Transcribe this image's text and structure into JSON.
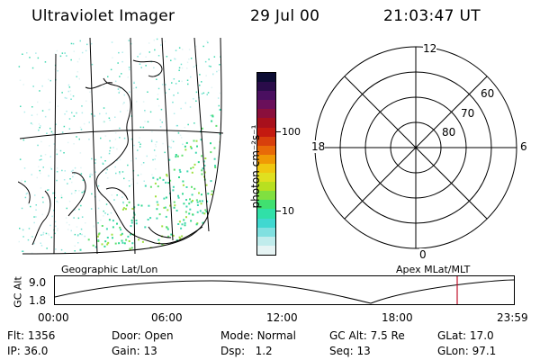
{
  "header": {
    "instrument": "Ultraviolet Imager",
    "date": "29 Jul 00",
    "time": "21:03:47 UT"
  },
  "colorbar": {
    "unit_label": "photon cm⁻²s⁻¹",
    "ticks": [
      "100",
      "10"
    ],
    "colors_top_to_bottom": [
      "#0c0c33",
      "#2a0c4a",
      "#4a0f60",
      "#6a0f5a",
      "#8a0f3c",
      "#a8101c",
      "#c41a10",
      "#d8400c",
      "#e86a08",
      "#f09a05",
      "#f0c810",
      "#e0e020",
      "#b8e020",
      "#80e040",
      "#40e070",
      "#30e0a8",
      "#40d8d0",
      "#80e0e0",
      "#c0ecec",
      "#e6f4f4"
    ]
  },
  "polar_plot": {
    "mlt_labels": {
      "top": "12",
      "left": "18",
      "right": "6",
      "bottom": "0"
    },
    "lat_labels": [
      "60",
      "70",
      "80"
    ]
  },
  "orbit_panel": {
    "left_label": "Geographic Lat/Lon",
    "right_label": "Apex MLat/MLT",
    "y_axis_label": "GC Alt",
    "y_ticks": [
      "9.0",
      "1.8"
    ],
    "x_ticks": [
      "00:00",
      "06:00",
      "12:00",
      "18:00",
      "23:59"
    ],
    "current_marker_color": "#c0102a"
  },
  "status": {
    "row1": [
      {
        "label": "Flt:",
        "value": "1356"
      },
      {
        "label": "Door:",
        "value": "Open"
      },
      {
        "label": "Mode:",
        "value": "Normal"
      },
      {
        "label": "GC Alt:",
        "value": "7.5 Re"
      },
      {
        "label": "GLat:",
        "value": "17.0"
      }
    ],
    "row2": [
      {
        "label": "IP:",
        "value": "36.0"
      },
      {
        "label": "Gain:",
        "value": "13"
      },
      {
        "label": "Dsp:",
        "value": "1.2"
      },
      {
        "label": "Seq:",
        "value": "13"
      },
      {
        "label": "GLon:",
        "value": "97.1"
      }
    ]
  }
}
